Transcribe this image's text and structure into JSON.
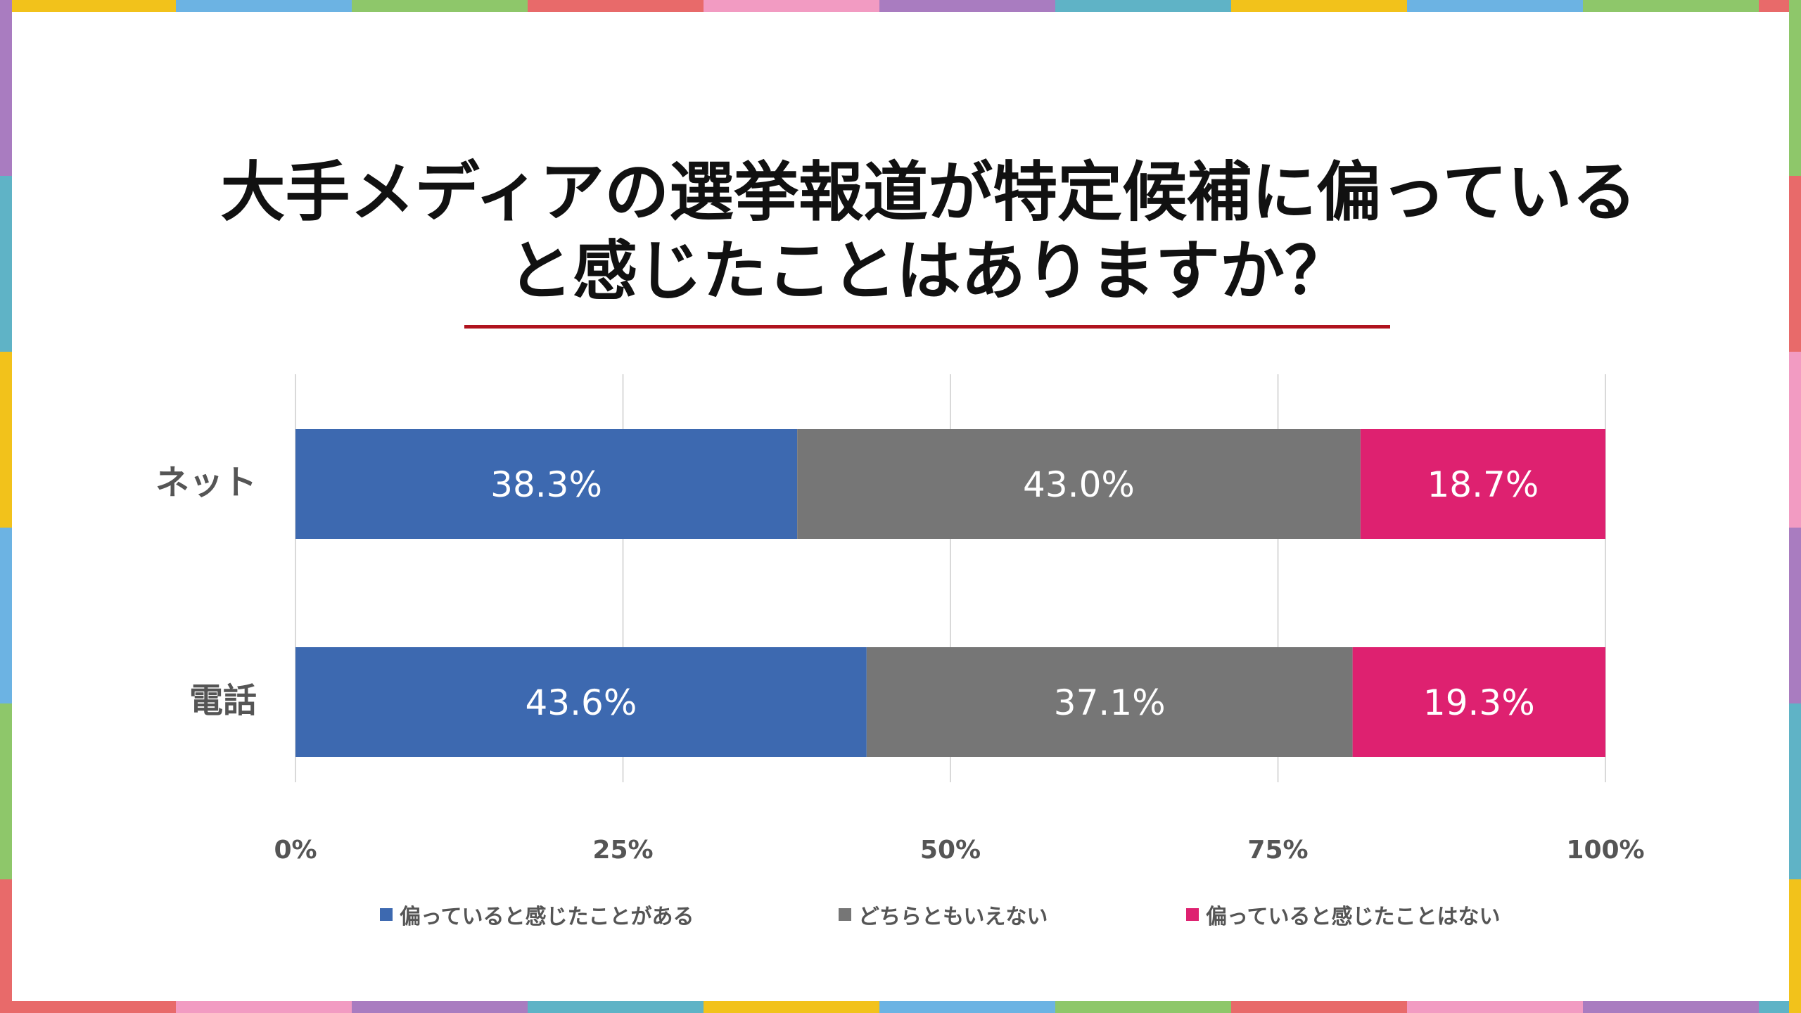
{
  "title": {
    "line1": "大手メディアの選挙報道が特定候補に偏っている",
    "line2": "と感じたことはありますか？"
  },
  "colors": {
    "series1": "#3d69b0",
    "series2": "#767676",
    "series3": "#de2170",
    "underline": "#b0131e",
    "gridline": "#d9d9d9",
    "axis_text": "#555555"
  },
  "chart_data": {
    "type": "bar",
    "orientation": "horizontal",
    "stacked": true,
    "percent_stacked": true,
    "categories": [
      "ネット",
      "電話"
    ],
    "series": [
      {
        "name": "偏っていると感じたことがある",
        "values": [
          38.3,
          43.6
        ],
        "labels": [
          "38.3%",
          "43.6%"
        ]
      },
      {
        "name": "どちらともいえない",
        "values": [
          43.0,
          37.1
        ],
        "labels": [
          "43.0%",
          "37.1%"
        ]
      },
      {
        "name": "偏っていると感じたことはない",
        "values": [
          18.7,
          19.3
        ],
        "labels": [
          "18.7%",
          "19.3%"
        ]
      }
    ],
    "xlim": [
      0,
      100
    ],
    "x_ticks": [
      "0%",
      "25%",
      "50%",
      "75%",
      "100%"
    ],
    "grid": true,
    "legend_position": "bottom"
  },
  "legend": {
    "items": [
      "偏っていると感じたことがある",
      "どちらともいえない",
      "偏っていると感じたことはない"
    ]
  }
}
